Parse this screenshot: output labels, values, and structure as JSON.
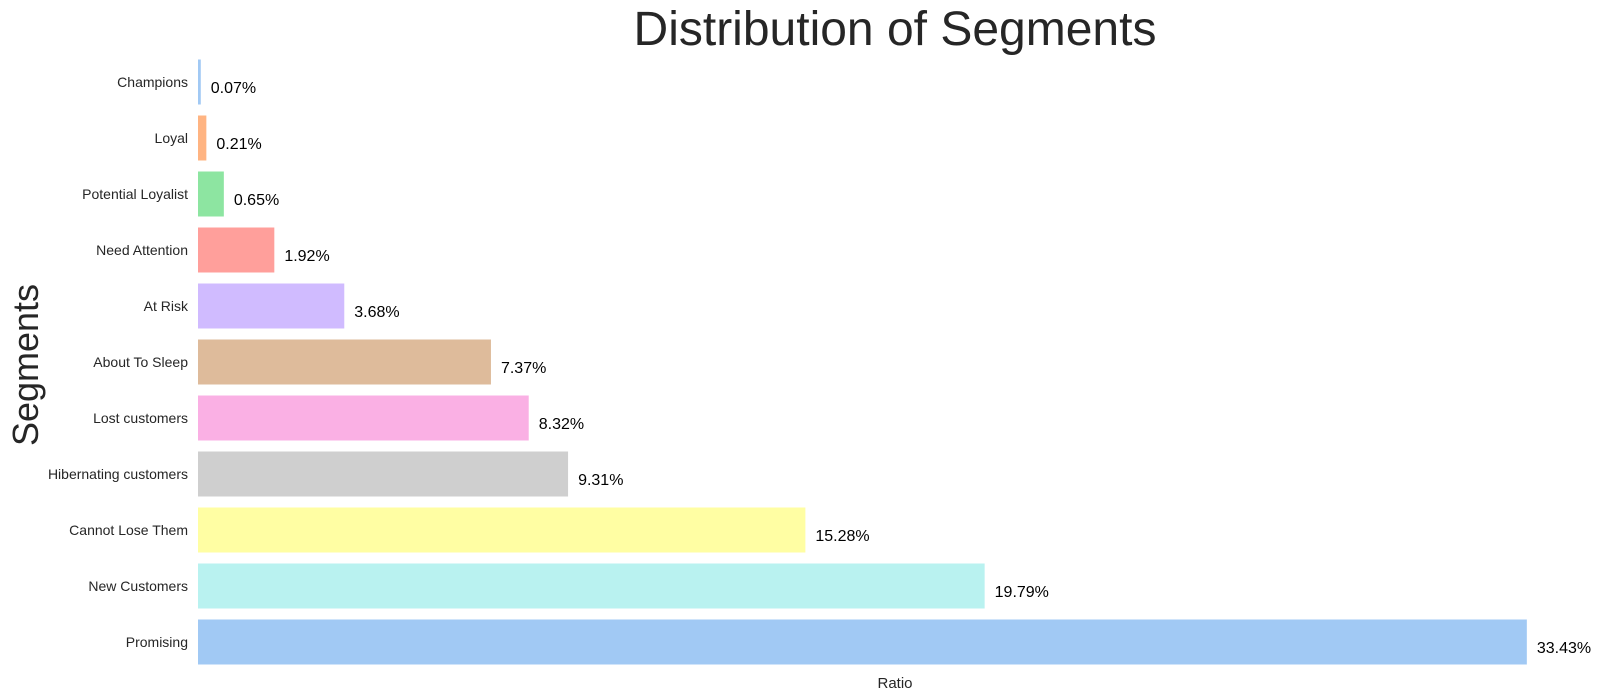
{
  "chart_data": {
    "type": "bar",
    "orientation": "horizontal",
    "title": "Distribution of Segments",
    "xlabel": "Ratio",
    "ylabel": "Segments",
    "categories": [
      "Champions",
      "Loyal",
      "Potential Loyalist",
      "Need Attention",
      "At Risk",
      "About To Sleep",
      "Lost customers",
      "Hibernating customers",
      "Cannot Lose Them",
      "New Customers",
      "Promising"
    ],
    "values": [
      0.07,
      0.21,
      0.65,
      1.92,
      3.68,
      7.37,
      8.32,
      9.31,
      15.28,
      19.79,
      33.43
    ],
    "data_labels": [
      "0.07%",
      "0.21%",
      "0.65%",
      "1.92%",
      "3.68%",
      "7.37%",
      "8.32%",
      "9.31%",
      "15.28%",
      "19.79%",
      "33.43%"
    ],
    "colors": [
      "#a1c9f4",
      "#ffb482",
      "#8de5a1",
      "#ff9f9b",
      "#d0bbff",
      "#debb9b",
      "#fab0e4",
      "#cfcfcf",
      "#fffea3",
      "#b9f2f0",
      "#a1c9f4"
    ],
    "grid": false
  }
}
